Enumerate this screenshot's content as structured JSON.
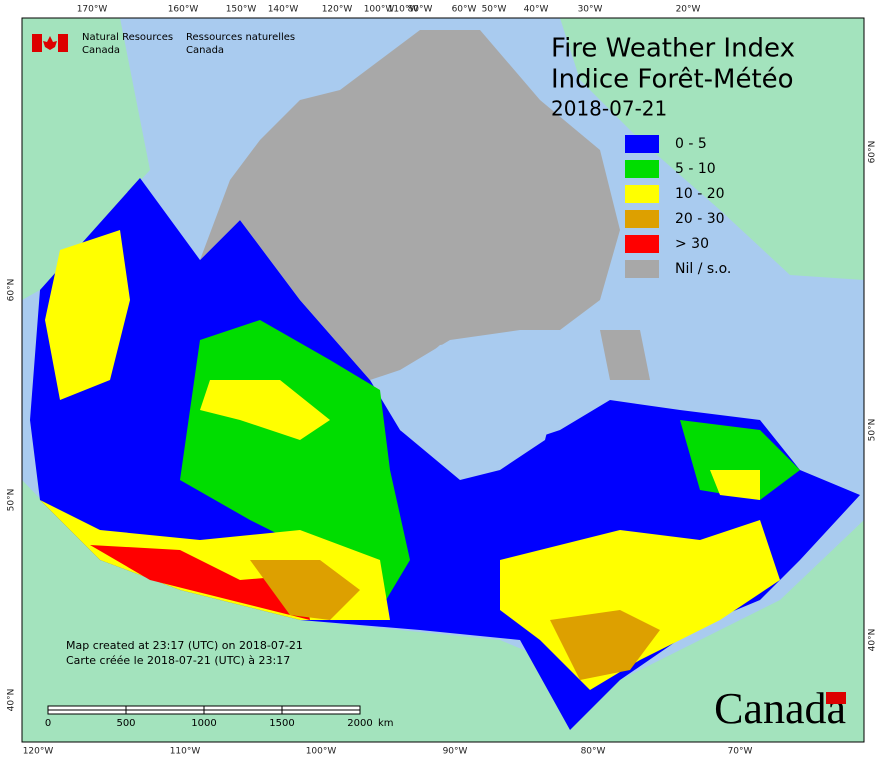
{
  "header": {
    "agency_en": "Natural Resources",
    "agency_en_2": "Canada",
    "agency_fr": "Ressources naturelles",
    "agency_fr_2": "Canada"
  },
  "title": {
    "line1": "Fire Weather Index",
    "line2": "Indice Forêt-Météo",
    "date": "2018-07-21"
  },
  "legend": [
    {
      "label": "0 - 5",
      "color": "#0000ff"
    },
    {
      "label": "5 - 10",
      "color": "#00dd00"
    },
    {
      "label": "10 - 20",
      "color": "#ffff00"
    },
    {
      "label": "20 - 30",
      "color": "#dda000"
    },
    {
      "label": "> 30",
      "color": "#ff0000"
    },
    {
      "label": "Nil / s.o.",
      "color": "#a8a8a8"
    }
  ],
  "top_labels": [
    "170°W",
    "160°W",
    "150°W",
    "140°W",
    "120°W",
    "100°W",
    "110°W",
    "80°W",
    "60°W",
    "50°W",
    "40°W",
    "30°W",
    "20°W"
  ],
  "bottom_labels": [
    "120°W",
    "110°W",
    "100°W",
    "90°W",
    "80°W",
    "70°W"
  ],
  "left_labels": [
    "60°N",
    "50°N",
    "40°N"
  ],
  "right_labels": [
    "60°N",
    "50°N",
    "40°N"
  ],
  "notes": [
    "Map created at 23:17 (UTC) on 2018-07-21",
    "Carte créée le 2018-07-21 (UTC) à 23:17"
  ],
  "scale": {
    "ticks": [
      0,
      500,
      1000,
      1500,
      2000
    ],
    "unit": "km"
  },
  "wordmark": "Canada"
}
